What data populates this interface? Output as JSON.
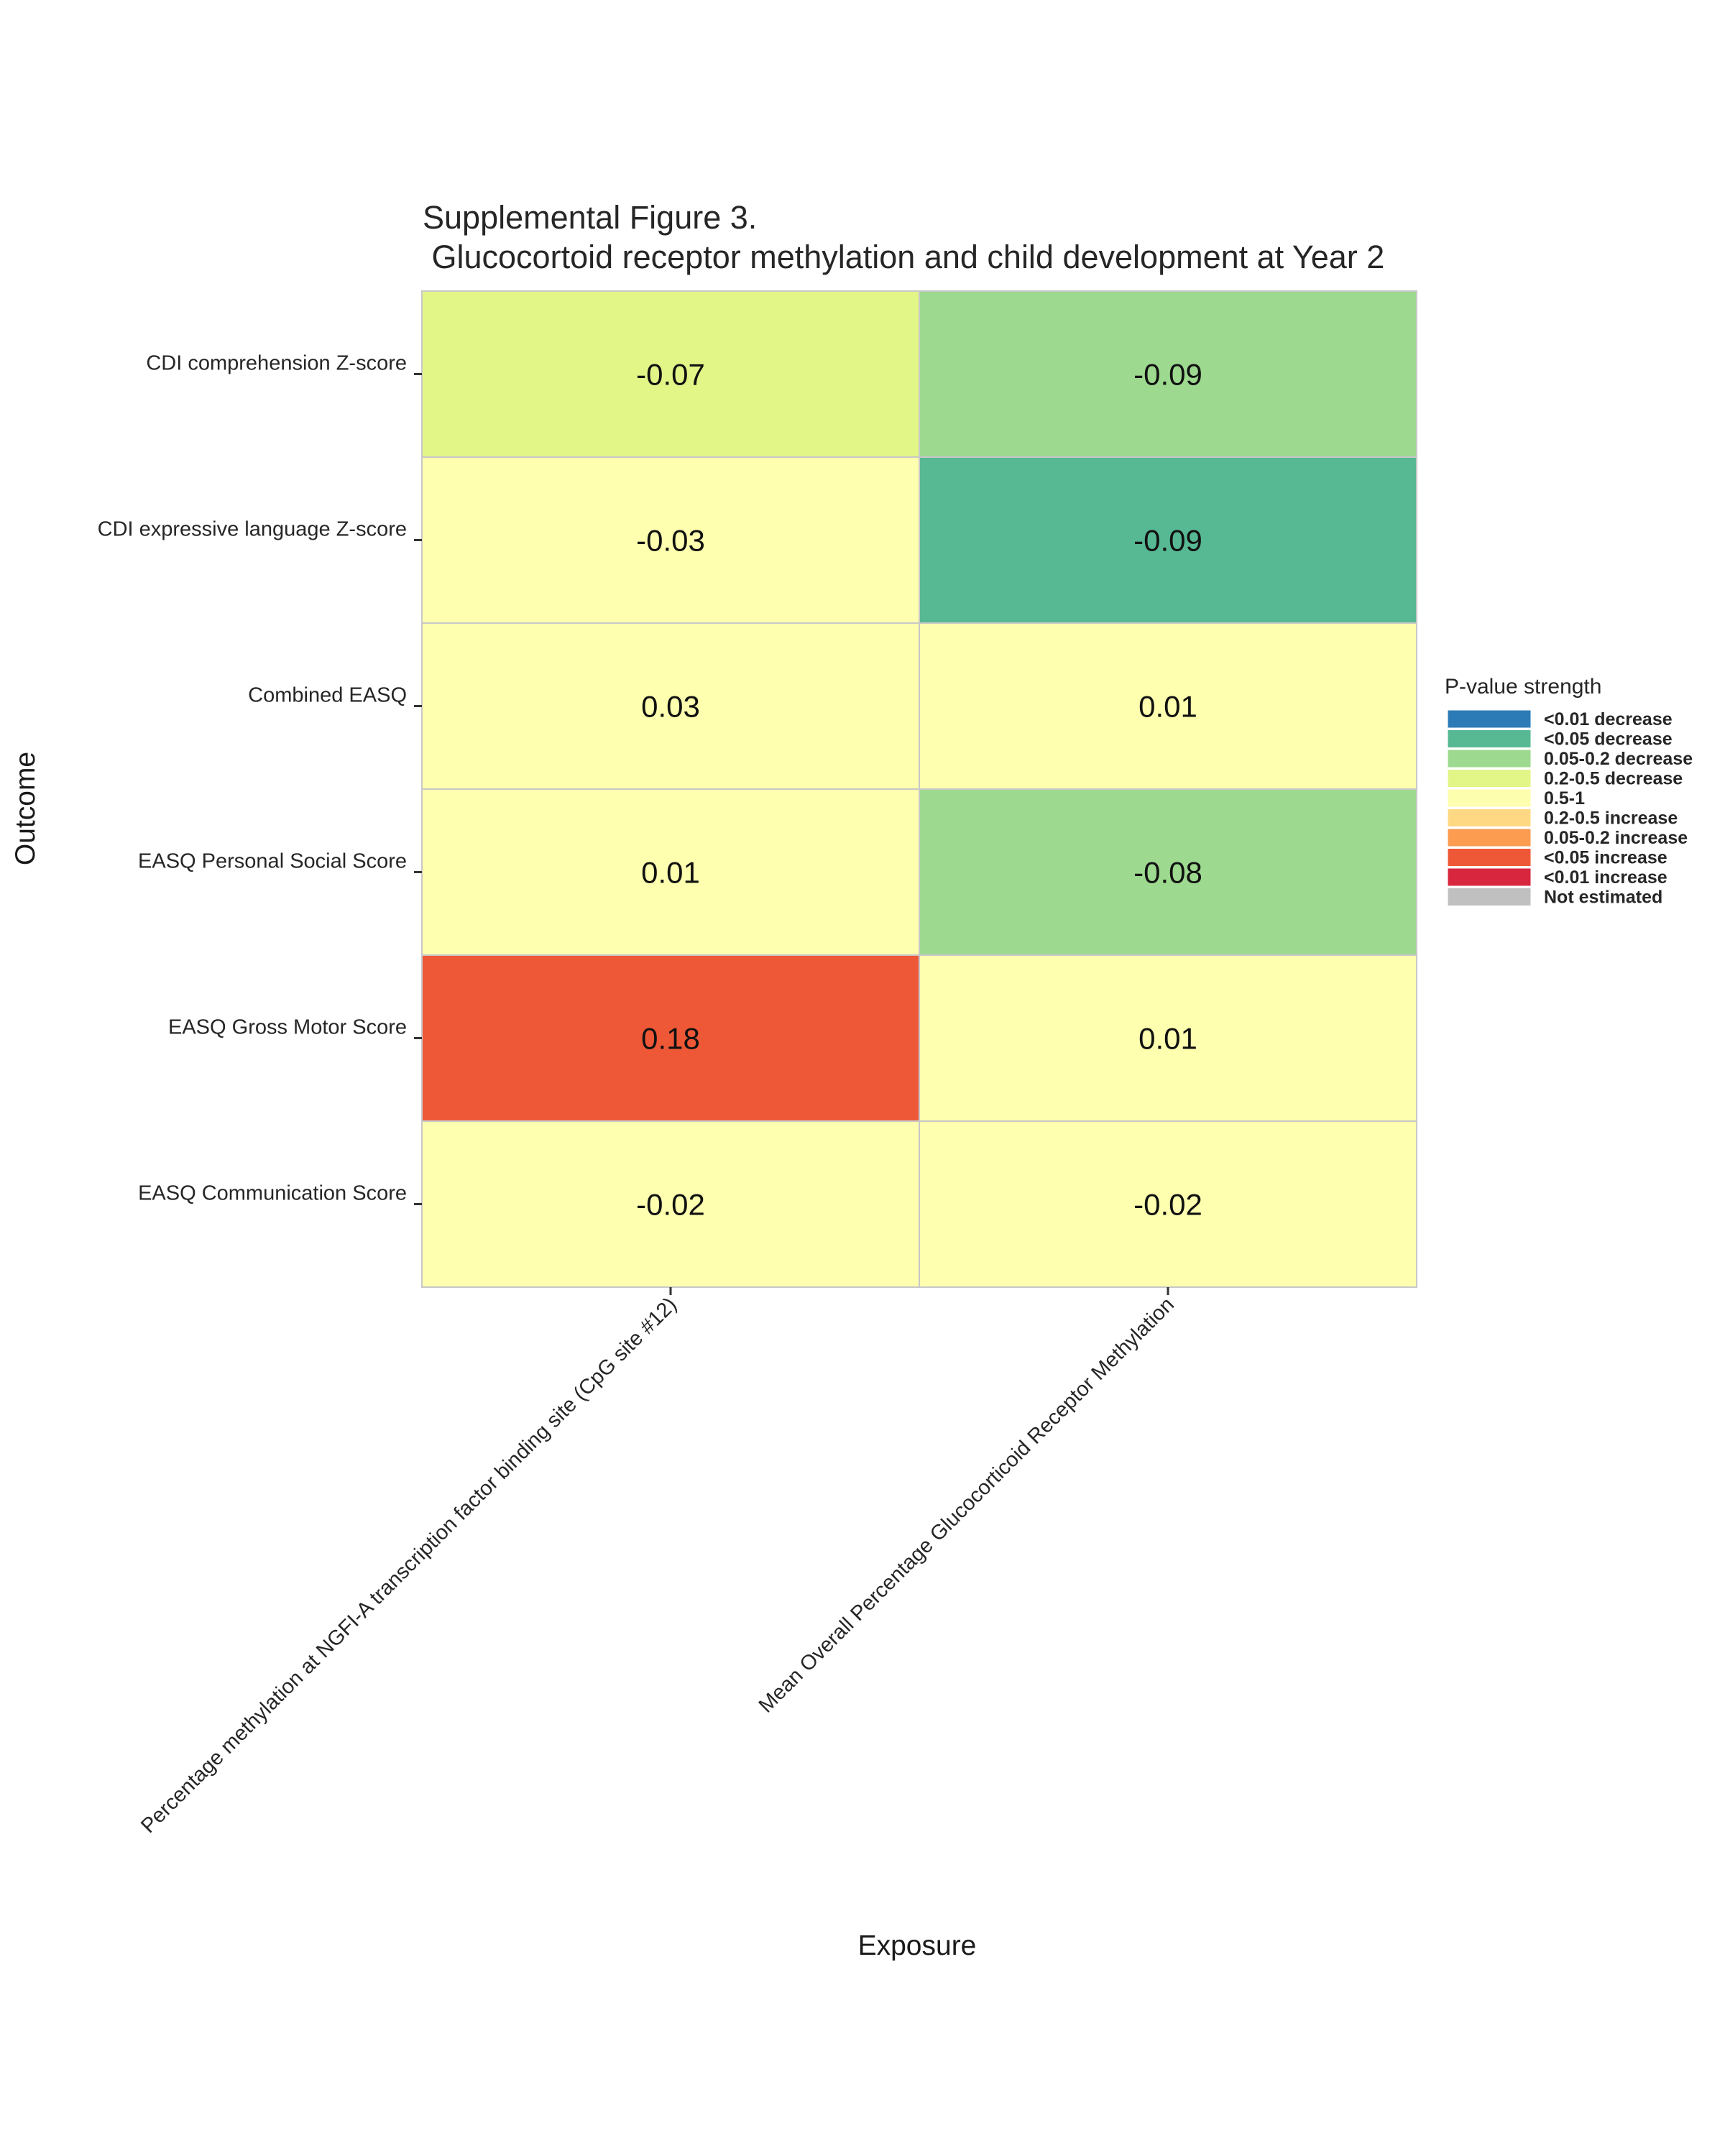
{
  "chart_data": {
    "type": "heatmap",
    "title_lines": [
      "Supplemental Figure 3.",
      " Glucocortoid receptor methylation and child development at Year 2"
    ],
    "xlabel": "Exposure",
    "ylabel": "Outcome",
    "x_categories": [
      "Percentage methylation at NGFI-A transcription factor binding site (CpG site #12)",
      "Mean Overall Percentage Glucocorticoid Receptor Methylation"
    ],
    "y_categories": [
      "CDI comprehension Z-score",
      "CDI expressive language Z-score",
      "Combined EASQ",
      "EASQ Personal Social Score",
      "EASQ Gross Motor Score",
      "EASQ Communication Score"
    ],
    "values": [
      [
        "-0.07",
        "-0.09"
      ],
      [
        "-0.03",
        "-0.09"
      ],
      [
        "0.03",
        "0.01"
      ],
      [
        "0.01",
        "-0.08"
      ],
      [
        "0.18",
        "0.01"
      ],
      [
        "-0.02",
        "-0.02"
      ]
    ],
    "pvalue_category": [
      [
        "0.2-0.5 decrease",
        "0.05-0.2 decrease"
      ],
      [
        "0.5-1",
        "<0.05 decrease"
      ],
      [
        "0.5-1",
        "0.5-1"
      ],
      [
        "0.5-1",
        "0.05-0.2 decrease"
      ],
      [
        "<0.05 increase",
        "0.5-1"
      ],
      [
        "0.5-1",
        "0.5-1"
      ]
    ],
    "legend": {
      "title": "P-value strength",
      "position": "right",
      "entries": [
        {
          "label": "<0.01 decrease",
          "color": "#2c7bb6"
        },
        {
          "label": "<0.05 decrease",
          "color": "#57b894"
        },
        {
          "label": "0.05-0.2 decrease",
          "color": "#9dd98f"
        },
        {
          "label": "0.2-0.5 decrease",
          "color": "#e2f587"
        },
        {
          "label": "0.5-1",
          "color": "#fefeaf"
        },
        {
          "label": "0.2-0.5 increase",
          "color": "#fed883"
        },
        {
          "label": "0.05-0.2 increase",
          "color": "#fb9c51"
        },
        {
          "label": "<0.05 increase",
          "color": "#ee5837"
        },
        {
          "label": "<0.01 increase",
          "color": "#d7263d"
        },
        {
          "label": "Not estimated",
          "color": "#c0c0c0"
        }
      ]
    },
    "cell_colors": {
      "0.5-1": "#ffffb0"
    }
  }
}
